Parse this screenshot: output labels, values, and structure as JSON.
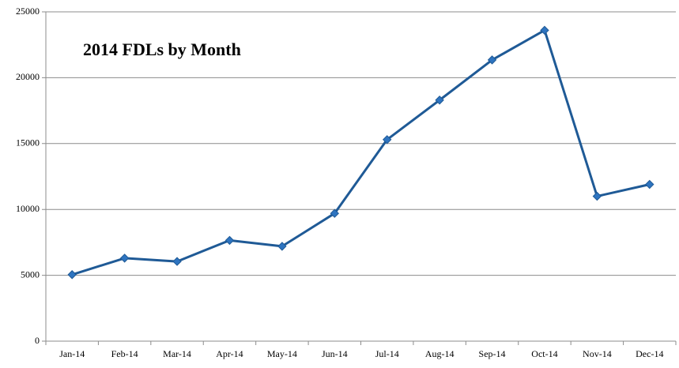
{
  "chart_data": {
    "type": "line",
    "title": "2014 FDLs by Month",
    "categories": [
      "Jan-14",
      "Feb-14",
      "Mar-14",
      "Apr-14",
      "May-14",
      "Jun-14",
      "Jul-14",
      "Aug-14",
      "Sep-14",
      "Oct-14",
      "Nov-14",
      "Dec-14"
    ],
    "series": [
      {
        "color": "#1f5a96",
        "values": [
          5050,
          6300,
          6050,
          7650,
          7200,
          9700,
          15300,
          18300,
          21350,
          23600,
          11000,
          11900
        ]
      }
    ],
    "ylim": [
      0,
      25000
    ],
    "yticks": [
      0,
      5000,
      10000,
      15000,
      20000,
      25000
    ],
    "grid": true
  }
}
